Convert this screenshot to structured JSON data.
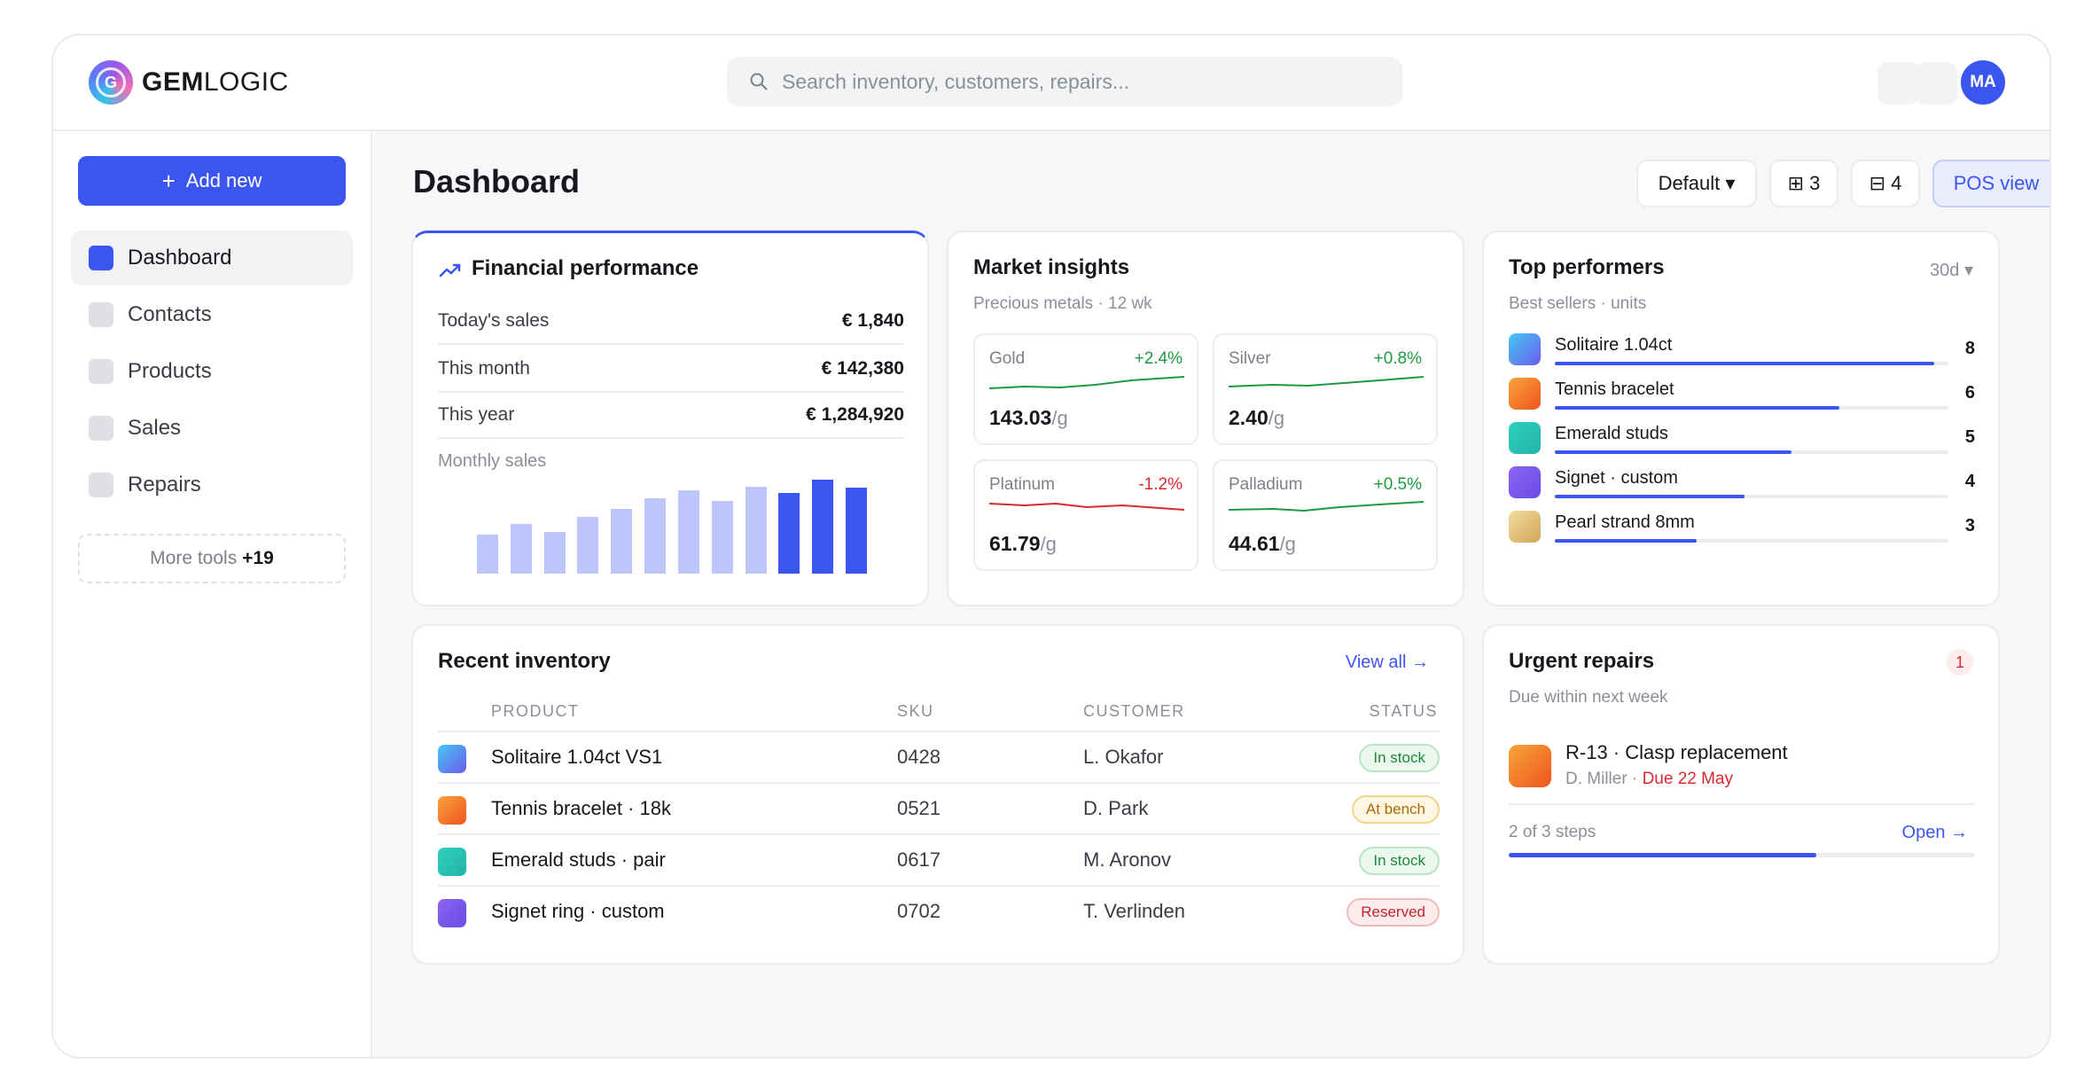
{
  "brand": {
    "name_bold": "GEM",
    "name_light": "LOGIC",
    "mark_letter": "G"
  },
  "search": {
    "placeholder": "Search inventory, customers, repairs..."
  },
  "user": {
    "initials": "MA"
  },
  "sidebar": {
    "add_label": "Add new",
    "items": [
      {
        "label": "Dashboard",
        "active": true
      },
      {
        "label": "Contacts",
        "active": false
      },
      {
        "label": "Products",
        "active": false
      },
      {
        "label": "Sales",
        "active": false
      },
      {
        "label": "Repairs",
        "active": false
      }
    ],
    "more_tools_label": "More tools",
    "more_tools_count": "+19"
  },
  "page": {
    "title": "Dashboard",
    "toolbar": {
      "layout": "Default ▾",
      "grid3": "⊞ 3",
      "grid4": "⊟ 4",
      "pos": "POS view"
    }
  },
  "financial": {
    "title": "Financial performance",
    "rows": [
      {
        "label": "Today's sales",
        "value": "€ 1,840"
      },
      {
        "label": "This month",
        "value": "€ 142,380"
      },
      {
        "label": "This year",
        "value": "€ 1,284,920"
      }
    ],
    "monthly_label": "Monthly sales",
    "monthly_values": [
      24,
      32,
      26,
      37,
      43,
      51,
      57,
      49,
      60,
      55,
      65,
      59
    ],
    "highlight_from": 9
  },
  "market": {
    "title": "Market insights",
    "subtitle": "Precious metals · 12 wk",
    "metals": [
      {
        "name": "Gold",
        "change": "+2.4%",
        "dir": "up",
        "value": "143.03",
        "unit": "/g"
      },
      {
        "name": "Silver",
        "change": "+0.8%",
        "dir": "up",
        "value": "2.40",
        "unit": "/g"
      },
      {
        "name": "Platinum",
        "change": "-1.2%",
        "dir": "down",
        "value": "61.79",
        "unit": "/g"
      },
      {
        "name": "Palladium",
        "change": "+0.5%",
        "dir": "up",
        "value": "44.61",
        "unit": "/g"
      }
    ],
    "colors": {
      "up": "#1c9a3f",
      "down": "#d8292f"
    }
  },
  "top_performers": {
    "title": "Top performers",
    "subtitle": "Best sellers · units",
    "range": "30d ▾",
    "max": 8.3,
    "items": [
      {
        "name": "Solitaire 1.04ct",
        "units": "8",
        "value": 8
      },
      {
        "name": "Tennis bracelet",
        "units": "6",
        "value": 6
      },
      {
        "name": "Emerald studs",
        "units": "5",
        "value": 5
      },
      {
        "name": "Signet · custom",
        "units": "4",
        "value": 4
      },
      {
        "name": "Pearl strand 8mm",
        "units": "3",
        "value": 3
      }
    ]
  },
  "inventory": {
    "title": "Recent inventory",
    "view_all": "View all →",
    "headers": {
      "product": "PRODUCT",
      "sku": "SKU",
      "customer": "CUSTOMER",
      "status": "STATUS"
    },
    "rows": [
      {
        "product": "Solitaire 1.04ct VS1",
        "sku": "0428",
        "customer": "L. Okafor",
        "status": "In stock",
        "tone": "green"
      },
      {
        "product": "Tennis bracelet · 18k",
        "sku": "0521",
        "customer": "D. Park",
        "status": "At bench",
        "tone": "amber"
      },
      {
        "product": "Emerald studs · pair",
        "sku": "0617",
        "customer": "M. Aronov",
        "status": "In stock",
        "tone": "green"
      },
      {
        "product": "Signet ring · custom",
        "sku": "0702",
        "customer": "T. Verlinden",
        "status": "Reserved",
        "tone": "red"
      }
    ]
  },
  "urgent": {
    "title": "Urgent repairs",
    "subtitle": "Due within next week",
    "count": "1",
    "repair": {
      "title": "R-13 · Clasp replacement",
      "customer": "D. Miller · ",
      "due": "Due 22 May"
    },
    "steps": "2 of 3 steps",
    "steps_fraction": 0.66,
    "open": "Open →"
  },
  "colors": {
    "accent": "#3a55f0",
    "bar_light": "#bcc6fa"
  }
}
